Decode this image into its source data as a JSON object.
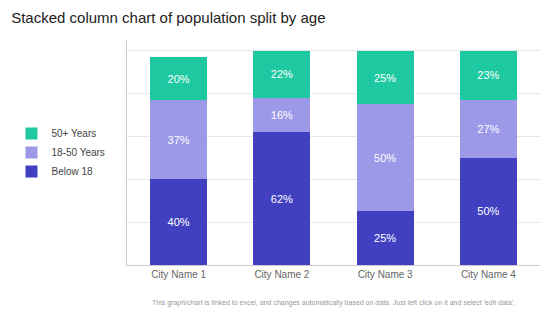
{
  "chart_data": {
    "type": "bar",
    "title": "Stacked column chart of population split by age",
    "annotations": [
      "This graph/chart is linked to excel, and changes automatically based on data. Just left click on it and select 'edit data'."
    ],
    "categories": [
      "City Name 1",
      "City Name 2",
      "City Name 3",
      "City Name 4"
    ],
    "series": [
      {
        "name": "Below 18",
        "color": "#4040c0",
        "values": [
          40,
          62,
          25,
          50
        ],
        "value_labels": [
          "40%",
          "62%",
          "25%",
          "50%"
        ]
      },
      {
        "name": "18-50 Years",
        "color": "#9b99e8",
        "values": [
          37,
          16,
          50,
          27
        ],
        "value_labels": [
          "37%",
          "16%",
          "50%",
          "27%"
        ]
      },
      {
        "name": "50+ Years",
        "color": "#1ec8a0",
        "values": [
          20,
          22,
          25,
          23
        ],
        "value_labels": [
          "20%",
          "22%",
          "25%",
          "23%"
        ]
      }
    ],
    "stacked": true,
    "data_labels": true,
    "ylim": [
      0,
      105
    ],
    "yticks": [
      0,
      20,
      40,
      60,
      80,
      100
    ],
    "grid": true,
    "tick_labels": "x",
    "legend": "left"
  }
}
